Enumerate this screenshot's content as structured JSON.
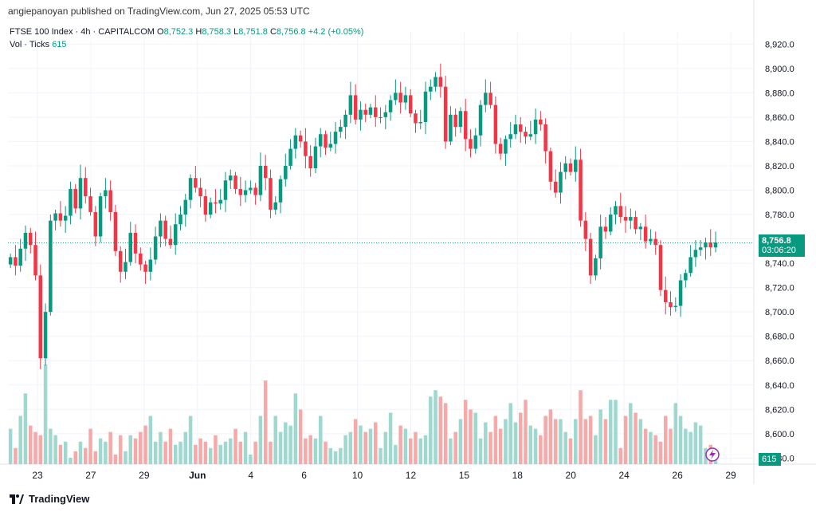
{
  "header": {
    "published": "angiepanoyan published on TradingView.com, Jun 27, 2025 05:53 UTC"
  },
  "legend": {
    "symbol": "FTSE 100 Index · 4h · CAPITALCOM",
    "o_label": "O",
    "o": "8,752.3",
    "h_label": "H",
    "h": "8,758.3",
    "l_label": "L",
    "l": "8,751.8",
    "c_label": "C",
    "c": "8,756.8",
    "change": "+4.2 (+0.05%)",
    "vol_label": "Vol · Ticks",
    "vol": "615"
  },
  "price_tag": {
    "price": "8,756.8",
    "countdown": "03:06:20"
  },
  "vol_tag": "615",
  "footer": {
    "brand": "TradingView"
  },
  "colors": {
    "up": "#089981",
    "down": "#f23645",
    "up_vol": "#9fd8cf",
    "down_vol": "#f5a9a9",
    "grid": "#f0f3fa"
  },
  "chart_data": {
    "type": "candlestick",
    "y_axis": {
      "ticks": [
        "8,920.0",
        "8,900.0",
        "8,880.0",
        "8,860.0",
        "8,840.0",
        "8,820.0",
        "8,800.0",
        "8,780.0",
        "8,760.0",
        "8,740.0",
        "8,720.0",
        "8,700.0",
        "8,680.0",
        "8,660.0",
        "8,640.0",
        "8,620.0",
        "8,600.0",
        "8,580.0"
      ],
      "range": [
        8575,
        8930
      ]
    },
    "x_axis": {
      "ticks": [
        "23",
        "27",
        "29",
        "Jun",
        "4",
        "6",
        "10",
        "12",
        "15",
        "18",
        "20",
        "24",
        "26",
        "29"
      ]
    },
    "last_price": 8756.8,
    "closes": [
      8745,
      8738,
      8752,
      8765,
      8755,
      8730,
      8662,
      8700,
      8775,
      8781,
      8775,
      8779,
      8801,
      8785,
      8810,
      8795,
      8782,
      8762,
      8795,
      8800,
      8782,
      8750,
      8733,
      8741,
      8765,
      8748,
      8739,
      8733,
      8743,
      8762,
      8775,
      8760,
      8755,
      8772,
      8780,
      8792,
      8810,
      8802,
      8795,
      8780,
      8790,
      8789,
      8792,
      8808,
      8812,
      8801,
      8796,
      8800,
      8802,
      8796,
      8820,
      8810,
      8784,
      8790,
      8809,
      8820,
      8834,
      8845,
      8840,
      8828,
      8818,
      8836,
      8846,
      8835,
      8838,
      8848,
      8852,
      8862,
      8878,
      8858,
      8866,
      8862,
      8868,
      8860,
      8860,
      8864,
      8874,
      8880,
      8872,
      8878,
      8863,
      8855,
      8856,
      8881,
      8885,
      8893,
      8885,
      8840,
      8862,
      8852,
      8865,
      8842,
      8834,
      8845,
      8870,
      8880,
      8870,
      8838,
      8830,
      8842,
      8846,
      8854,
      8848,
      8844,
      8846,
      8858,
      8854,
      8832,
      8807,
      8798,
      8815,
      8822,
      8815,
      8825,
      8775,
      8760,
      8730,
      8744,
      8770,
      8766,
      8780,
      8787,
      8778,
      8775,
      8778,
      8768,
      8770,
      8758,
      8760,
      8755,
      8718,
      8708,
      8704,
      8705,
      8726,
      8732,
      8745,
      8751,
      8753,
      8757,
      8753,
      8757
    ],
    "volumes": [
      22,
      10,
      30,
      44,
      24,
      20,
      18,
      62,
      22,
      18,
      12,
      14,
      4,
      8,
      14,
      10,
      22,
      8,
      16,
      14,
      20,
      6,
      18,
      8,
      18,
      16,
      20,
      24,
      30,
      14,
      20,
      14,
      22,
      12,
      14,
      20,
      30,
      12,
      16,
      14,
      10,
      18,
      12,
      14,
      16,
      22,
      14,
      20,
      6,
      14,
      30,
      52,
      14,
      30,
      20,
      26,
      24,
      44,
      34,
      16,
      18,
      16,
      30,
      14,
      10,
      8,
      10,
      18,
      20,
      28,
      24,
      20,
      22,
      26,
      10,
      20,
      32,
      12,
      24,
      22,
      16,
      20,
      16,
      18,
      42,
      46,
      42,
      38,
      16,
      20,
      28,
      40,
      34,
      32,
      16,
      26,
      20,
      30,
      22,
      28,
      38,
      26,
      32,
      40,
      24,
      22,
      18,
      30,
      34,
      28,
      28,
      20,
      16,
      28,
      46,
      28,
      30,
      18,
      34,
      28,
      40,
      40,
      10,
      30,
      38,
      32,
      28,
      22,
      20,
      18,
      14,
      30,
      22,
      38,
      30,
      22,
      20,
      26,
      24,
      10,
      12,
      8
    ],
    "volume_label": "Vol · Ticks",
    "volume_last": 615
  }
}
